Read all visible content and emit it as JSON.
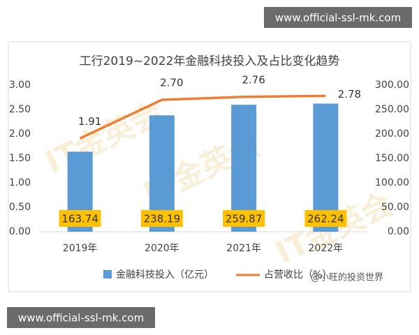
{
  "chart_data": {
    "type": "bar",
    "title": "工行2019~2022年金融科技投入及占比变化趋势",
    "categories": [
      "2019年",
      "2020年",
      "2021年",
      "2022年"
    ],
    "series": [
      {
        "name": "金融科技投入（亿元）",
        "type": "bar",
        "axis": "y2",
        "color": "#5b9bd5",
        "values": [
          163.74,
          238.19,
          259.87,
          262.24
        ]
      },
      {
        "name": "占营收比（%）",
        "type": "line",
        "color": "#ed7d31",
        "values": [
          1.91,
          2.7,
          2.76,
          2.78
        ],
        "value_labels": [
          "1.91",
          "2.70",
          "2.76",
          "2.78"
        ]
      }
    ],
    "ylim": [
      0,
      3
    ],
    "yticks": [
      {
        "value": 0,
        "label": "0.00"
      },
      {
        "value": 0.5,
        "label": "0.50"
      },
      {
        "value": 1,
        "label": "1.00"
      },
      {
        "value": 1.5,
        "label": "1.50"
      },
      {
        "value": 2,
        "label": "2.00"
      },
      {
        "value": 2.5,
        "label": "2.50"
      },
      {
        "value": 3,
        "label": "3.00"
      }
    ],
    "y2lim": [
      0,
      300
    ],
    "y2ticks": [
      {
        "value": 0,
        "label": "0.00"
      },
      {
        "value": 50,
        "label": "50.00"
      },
      {
        "value": 100,
        "label": "100.00"
      },
      {
        "value": 150,
        "label": "150.00"
      },
      {
        "value": 200,
        "label": "200.00"
      },
      {
        "value": 250,
        "label": "250.00"
      },
      {
        "value": 300,
        "label": "300.00"
      }
    ],
    "grid": false
  },
  "overlays": {
    "url": "www.official-ssl-mk.com",
    "watermark": "IT金英会",
    "credit": "@小旺的投资世界"
  }
}
